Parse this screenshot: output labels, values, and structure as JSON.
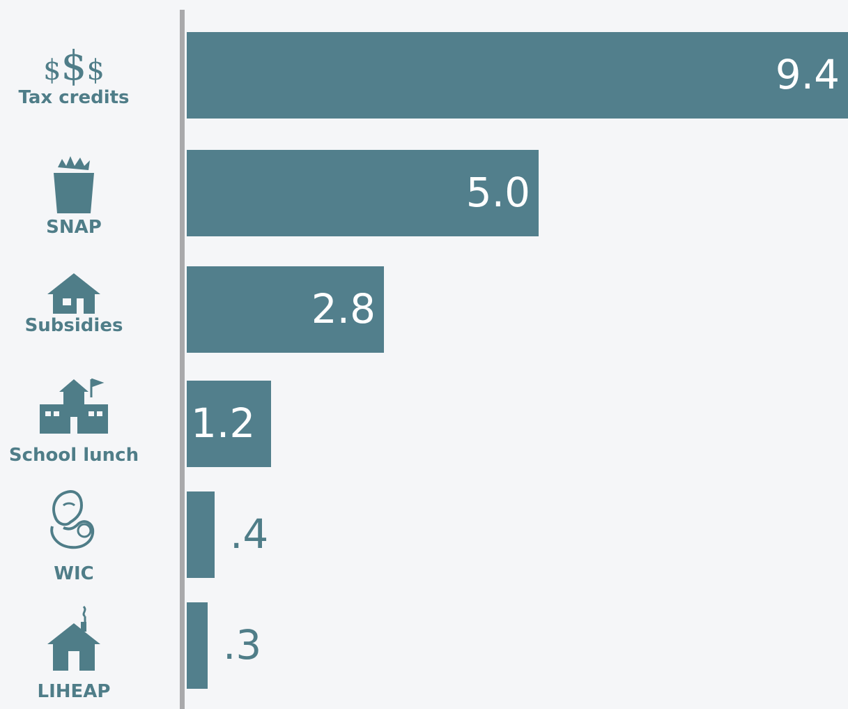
{
  "colors": {
    "bar": "#527f8c",
    "icon": "#4f7d88",
    "label_inside": "#ffffff",
    "label_outside": "#4f7d88",
    "axis": "#a9a9ab",
    "background": "#f5f6f8"
  },
  "chart_data": {
    "type": "bar",
    "orientation": "horizontal",
    "categories": [
      "Tax credits",
      "SNAP",
      "Subsidies",
      "School lunch",
      "WIC",
      "LIHEAP"
    ],
    "icons": [
      "dollar-signs-icon",
      "grocery-bag-icon",
      "house-icon",
      "school-building-icon",
      "mother-child-icon",
      "house-chimney-icon"
    ],
    "values": [
      9.4,
      5.0,
      2.8,
      1.2,
      0.4,
      0.3
    ],
    "value_labels": [
      "9.4",
      "5.0",
      "2.8",
      "1.2",
      ".4",
      ".3"
    ],
    "xlim": [
      0,
      9.4
    ],
    "grid": false,
    "legend": "none"
  }
}
